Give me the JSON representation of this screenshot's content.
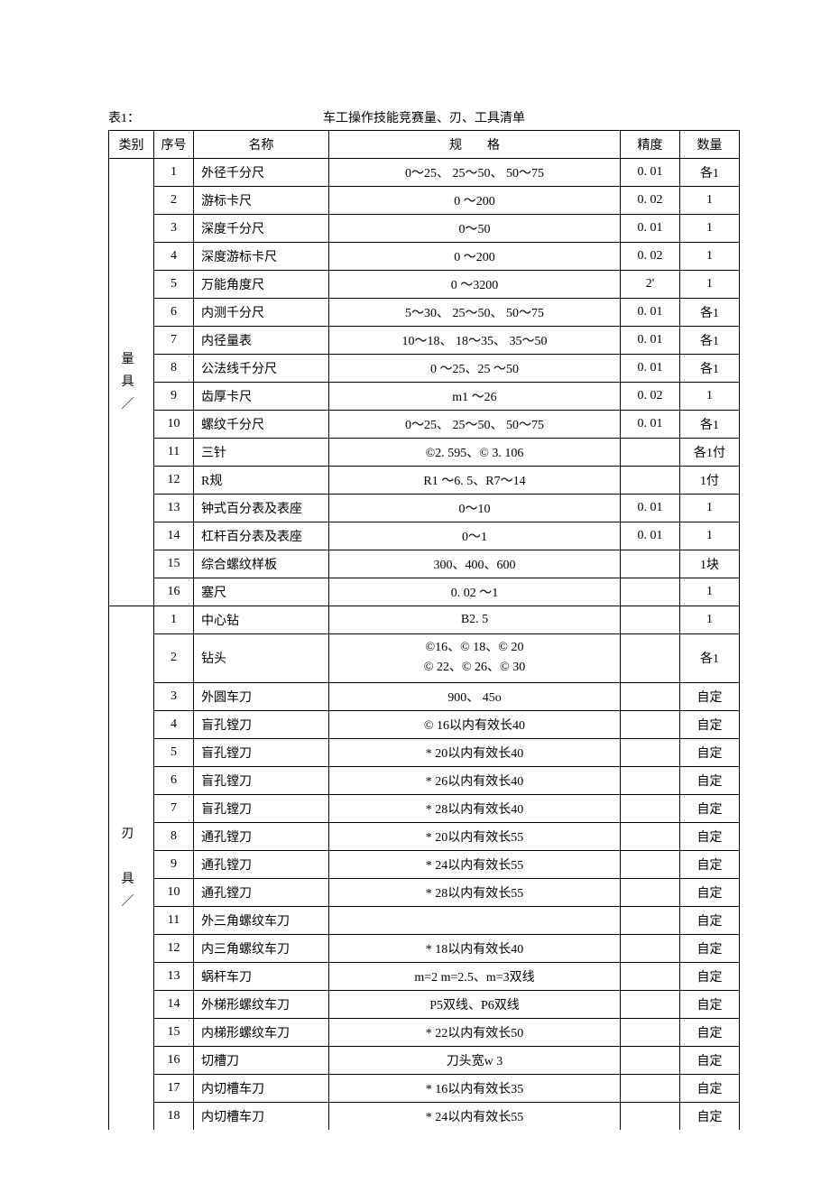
{
  "header": {
    "table_label": "表1：",
    "title": "车工操作技能竞赛量、刃、工具清单"
  },
  "columns": {
    "category": "类别",
    "seq": "序号",
    "name": "名称",
    "spec": "规　　格",
    "precision": "精度",
    "qty": "数量"
  },
  "groups": [
    {
      "category_label": "量\n具\n／",
      "rows": [
        {
          "seq": "1",
          "name": "外径千分尺",
          "spec": "0～25、 25～50、 50～75",
          "precision": "0. 01",
          "qty": "各1"
        },
        {
          "seq": "2",
          "name": "游标卡尺",
          "spec": "0 ～200",
          "precision": "0. 02",
          "qty": "1"
        },
        {
          "seq": "3",
          "name": "深度千分尺",
          "spec": "0～50",
          "precision": "0. 01",
          "qty": "1"
        },
        {
          "seq": "4",
          "name": "深度游标卡尺",
          "spec": "0 ～200",
          "precision": "0. 02",
          "qty": "1"
        },
        {
          "seq": "5",
          "name": "万能角度尺",
          "spec": "0 ～3200",
          "precision": "2'",
          "qty": "1"
        },
        {
          "seq": "6",
          "name": "内测千分尺",
          "spec": "5～30、 25～50、 50～75",
          "precision": "0. 01",
          "qty": "各1"
        },
        {
          "seq": "7",
          "name": "内径量表",
          "spec": "10～18、 18～35、 35～50",
          "precision": "0. 01",
          "qty": "各1"
        },
        {
          "seq": "8",
          "name": "公法线千分尺",
          "spec": "0 ～25、25 ～50",
          "precision": "0. 01",
          "qty": "各1"
        },
        {
          "seq": "9",
          "name": "齿厚卡尺",
          "spec": "m1 ～26",
          "precision": "0. 02",
          "qty": "1"
        },
        {
          "seq": "10",
          "name": "螺纹千分尺",
          "spec": "0～25、 25～50、 50～75",
          "precision": "0. 01",
          "qty": "各1"
        },
        {
          "seq": "11",
          "name": "三针",
          "spec": "©2. 595、© 3. 106",
          "precision": "",
          "qty": "各1付"
        },
        {
          "seq": "12",
          "name": "R规",
          "spec": "R1 ～6. 5、R7～14",
          "precision": "",
          "qty": "1付"
        },
        {
          "seq": "13",
          "name": "钟式百分表及表座",
          "spec": "0～10",
          "precision": "0. 01",
          "qty": "1"
        },
        {
          "seq": "14",
          "name": "杠杆百分表及表座",
          "spec": "0～1",
          "precision": "0. 01",
          "qty": "1"
        },
        {
          "seq": "15",
          "name": "综合螺纹样板",
          "spec": "300、400、600",
          "precision": "",
          "qty": "1块"
        },
        {
          "seq": "16",
          "name": "塞尺",
          "spec": "0. 02 ～1",
          "precision": "",
          "qty": "1"
        }
      ]
    },
    {
      "category_label": "刃\n\n具\n／",
      "open_bottom": true,
      "rows": [
        {
          "seq": "1",
          "name": "中心钻",
          "spec": "B2. 5",
          "precision": "",
          "qty": "1"
        },
        {
          "seq": "2",
          "name": "钻头",
          "spec": "©16、© 18、© 20\n© 22、© 26、© 30",
          "precision": "",
          "qty": "各1",
          "twoLine": true
        },
        {
          "seq": "3",
          "name": "外圆车刀",
          "spec": "900、 45o",
          "precision": "",
          "qty": "自定"
        },
        {
          "seq": "4",
          "name": "盲孔镗刀",
          "spec": "© 16以内有效长40",
          "precision": "",
          "qty": "自定"
        },
        {
          "seq": "5",
          "name": "盲孔镗刀",
          "spec": "* 20以内有效长40",
          "precision": "",
          "qty": "自定"
        },
        {
          "seq": "6",
          "name": "盲孔镗刀",
          "spec": "* 26以内有效长40",
          "precision": "",
          "qty": "自定"
        },
        {
          "seq": "7",
          "name": "盲孔镗刀",
          "spec": "* 28以内有效长40",
          "precision": "",
          "qty": "自定"
        },
        {
          "seq": "8",
          "name": "通孔镗刀",
          "spec": "* 20以内有效长55",
          "precision": "",
          "qty": "自定"
        },
        {
          "seq": "9",
          "name": "通孔镗刀",
          "spec": "* 24以内有效长55",
          "precision": "",
          "qty": "自定"
        },
        {
          "seq": "10",
          "name": "通孔镗刀",
          "spec": "* 28以内有效长55",
          "precision": "",
          "qty": "自定"
        },
        {
          "seq": "11",
          "name": "外三角螺纹车刀",
          "spec": "",
          "precision": "",
          "qty": "自定"
        },
        {
          "seq": "12",
          "name": "内三角螺纹车刀",
          "spec": "* 18以内有效长40",
          "precision": "",
          "qty": "自定"
        },
        {
          "seq": "13",
          "name": "蜗杆车刀",
          "spec": "m=2 m=2.5、m=3双线",
          "precision": "",
          "qty": "自定"
        },
        {
          "seq": "14",
          "name": "外梯形螺纹车刀",
          "spec": "P5双线、P6双线",
          "precision": "",
          "qty": "自定"
        },
        {
          "seq": "15",
          "name": "内梯形螺纹车刀",
          "spec": "* 22以内有效长50",
          "precision": "",
          "qty": "自定"
        },
        {
          "seq": "16",
          "name": "切槽刀",
          "spec": "刀头宽w 3",
          "precision": "",
          "qty": "自定"
        },
        {
          "seq": "17",
          "name": "内切槽车刀",
          "spec": "* 16以内有效长35",
          "precision": "",
          "qty": "自定"
        },
        {
          "seq": "18",
          "name": "内切槽车刀",
          "spec": "* 24以内有效长55",
          "precision": "",
          "qty": "自定",
          "lastOpen": true
        }
      ]
    }
  ]
}
